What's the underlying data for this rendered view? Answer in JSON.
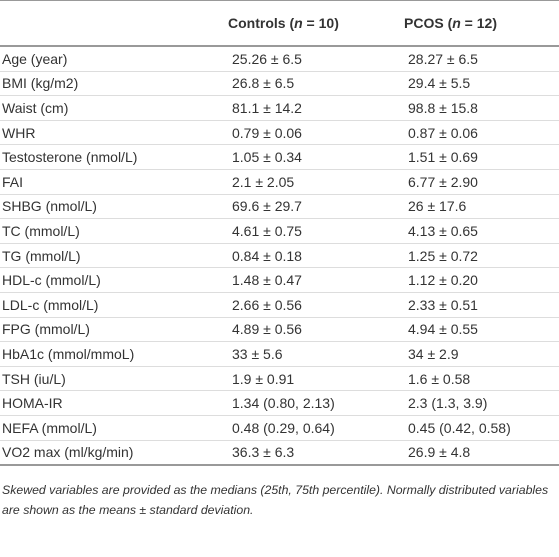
{
  "table": {
    "header": {
      "controls": [
        "Controls (",
        "n",
        " = 10)"
      ],
      "pcos": [
        "PCOS (",
        "n",
        " = 12)"
      ]
    },
    "rows": [
      [
        "Age (year)",
        "25.26 ± 6.5",
        "28.27 ± 6.5"
      ],
      [
        "BMI (kg/m2)",
        "26.8 ± 6.5",
        "29.4 ± 5.5"
      ],
      [
        "Waist (cm)",
        "81.1 ± 14.2",
        "98.8 ± 15.8"
      ],
      [
        "WHR",
        "0.79 ± 0.06",
        "0.87 ± 0.06"
      ],
      [
        "Testosterone (nmol/L)",
        "1.05 ± 0.34",
        "1.51 ± 0.69"
      ],
      [
        "FAI",
        "2.1 ± 2.05",
        "6.77 ± 2.90"
      ],
      [
        "SHBG (nmol/L)",
        "69.6 ± 29.7",
        "26 ± 17.6"
      ],
      [
        "TC (mmol/L)",
        "4.61 ± 0.75",
        "4.13 ± 0.65"
      ],
      [
        "TG (mmol/L)",
        "0.84 ± 0.18",
        "1.25 ± 0.72"
      ],
      [
        "HDL-c (mmol/L)",
        "1.48 ± 0.47",
        "1.12 ± 0.20"
      ],
      [
        "LDL-c (mmol/L)",
        "2.66 ± 0.56",
        "2.33 ± 0.51"
      ],
      [
        "FPG (mmol/L)",
        "4.89 ± 0.56",
        "4.94 ± 0.55"
      ],
      [
        "HbA1c (mmol/mmoL)",
        "33 ± 5.6",
        "34 ± 2.9"
      ],
      [
        "TSH (iu/L)",
        "1.9 ± 0.91",
        "1.6 ± 0.58"
      ],
      [
        "HOMA-IR",
        "1.34 (0.80, 2.13)",
        "2.3 (1.3, 3.9)"
      ],
      [
        "NEFA (mmol/L)",
        "0.48 (0.29, 0.64)",
        "0.45 (0.42, 0.58)"
      ],
      [
        "VO2 max (ml/kg/min)",
        "36.3 ± 6.3",
        "26.9 ± 4.8"
      ]
    ],
    "footnote": "Skewed variables are provided as the medians (25th, 75th percentile). Normally distributed variables are shown as the means ± standard deviation."
  }
}
